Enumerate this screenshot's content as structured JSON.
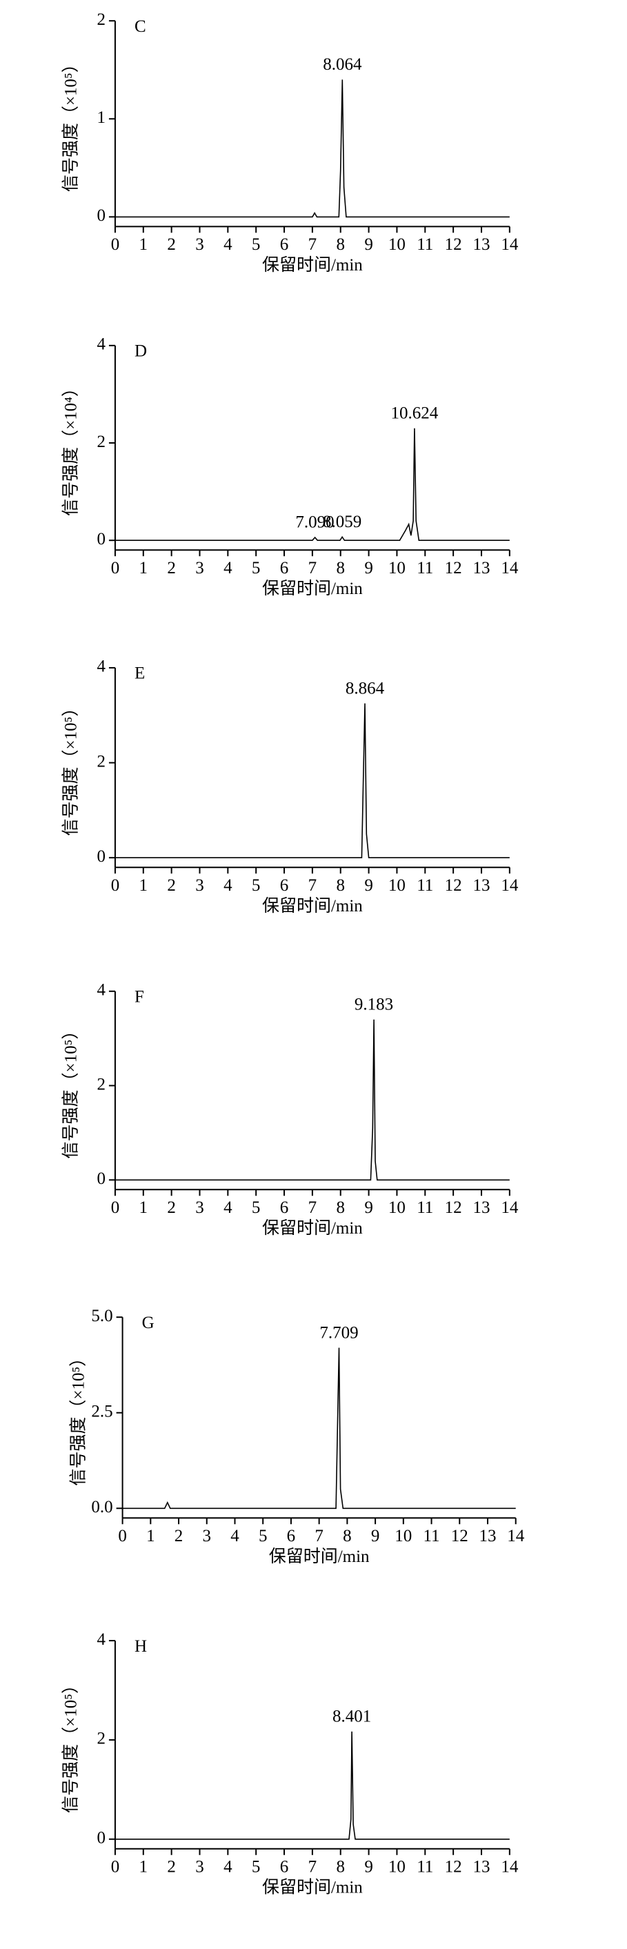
{
  "chart_data": [
    {
      "type": "line",
      "label": "C",
      "ylabel": "信号强度（×10⁵）",
      "xlabel": "保留时间/min",
      "xlim": [
        0,
        14
      ],
      "xticks": [
        0,
        1,
        2,
        3,
        4,
        5,
        6,
        7,
        8,
        9,
        10,
        11,
        12,
        13,
        14
      ],
      "ylim": [
        0,
        2
      ],
      "yticks": [
        0,
        1,
        2
      ],
      "x": [
        0,
        7.0,
        7.08,
        7.16,
        7.94,
        8.0,
        8.064,
        8.12,
        8.2,
        14
      ],
      "series": [
        {
          "color": "#000000",
          "values": [
            0,
            0,
            0.04,
            0,
            0,
            0.47,
            1.4,
            0.3,
            0,
            0
          ]
        }
      ],
      "annotations": [
        {
          "text": "8.064",
          "x": 8.064,
          "y": 1.4
        }
      ]
    },
    {
      "type": "line",
      "label": "D",
      "ylabel": "信号强度（×10⁴）",
      "xlabel": "保留时间/min",
      "xlim": [
        0,
        14
      ],
      "xticks": [
        0,
        1,
        2,
        3,
        4,
        5,
        6,
        7,
        8,
        9,
        10,
        11,
        12,
        13,
        14
      ],
      "ylim": [
        0,
        4
      ],
      "yticks": [
        0,
        2,
        4
      ],
      "x": [
        0,
        7.0,
        7.09,
        7.18,
        7.98,
        8.059,
        8.14,
        10.1,
        10.3,
        10.42,
        10.5,
        10.58,
        10.624,
        10.68,
        10.78,
        14
      ],
      "series": [
        {
          "color": "#000000",
          "values": [
            0,
            0,
            0.06,
            0,
            0,
            0.07,
            0,
            0,
            0.2,
            0.33,
            0.1,
            0.4,
            2.3,
            0.4,
            0,
            0
          ]
        }
      ],
      "annotations": [
        {
          "text": "7.090",
          "x": 7.09,
          "y": 0.06
        },
        {
          "text": "8.059",
          "x": 8.059,
          "y": 0.07
        },
        {
          "text": "10.624",
          "x": 10.624,
          "y": 2.3
        }
      ]
    },
    {
      "type": "line",
      "label": "E",
      "ylabel": "信号强度（×10⁵）",
      "xlabel": "保留时间/min",
      "xlim": [
        0,
        14
      ],
      "xticks": [
        0,
        1,
        2,
        3,
        4,
        5,
        6,
        7,
        8,
        9,
        10,
        11,
        12,
        13,
        14
      ],
      "ylim": [
        0,
        4
      ],
      "yticks": [
        0,
        2,
        4
      ],
      "x": [
        0,
        8.75,
        8.82,
        8.864,
        8.92,
        9.0,
        14
      ],
      "series": [
        {
          "color": "#000000",
          "values": [
            0,
            0,
            2.0,
            3.25,
            0.5,
            0,
            0
          ]
        }
      ],
      "annotations": [
        {
          "text": "8.864",
          "x": 8.864,
          "y": 3.25
        }
      ]
    },
    {
      "type": "line",
      "label": "F",
      "ylabel": "信号强度（×10⁵）",
      "xlabel": "保留时间/min",
      "xlim": [
        0,
        14
      ],
      "xticks": [
        0,
        1,
        2,
        3,
        4,
        5,
        6,
        7,
        8,
        9,
        10,
        11,
        12,
        13,
        14
      ],
      "ylim": [
        0,
        4
      ],
      "yticks": [
        0,
        2,
        4
      ],
      "x": [
        0,
        9.07,
        9.14,
        9.183,
        9.23,
        9.3,
        14
      ],
      "series": [
        {
          "color": "#000000",
          "values": [
            0,
            0,
            1.1,
            3.4,
            0.4,
            0,
            0
          ]
        }
      ],
      "annotations": [
        {
          "text": "9.183",
          "x": 9.183,
          "y": 3.4
        }
      ]
    },
    {
      "type": "line",
      "label": "G",
      "ylabel": "信号强度（×10⁵）",
      "xlabel": "保留时间/min",
      "xlim": [
        0,
        14
      ],
      "xticks": [
        0,
        1,
        2,
        3,
        4,
        5,
        6,
        7,
        8,
        9,
        10,
        11,
        12,
        13,
        14
      ],
      "ylim": [
        0,
        5
      ],
      "yticks": [
        {
          "value": 0,
          "label": "0.0"
        },
        2.5,
        {
          "value": 5,
          "label": "5.0"
        }
      ],
      "x": [
        0,
        1.5,
        1.6,
        1.7,
        7.6,
        7.67,
        7.709,
        7.76,
        7.85,
        14
      ],
      "series": [
        {
          "color": "#000000",
          "values": [
            0,
            0,
            0.15,
            0,
            0,
            2.7,
            4.2,
            0.5,
            0,
            0
          ]
        }
      ],
      "annotations": [
        {
          "text": "7.709",
          "x": 7.709,
          "y": 4.2
        }
      ]
    },
    {
      "type": "line",
      "label": "H",
      "ylabel": "信号强度（×10⁵）",
      "xlabel": "保留时间/min",
      "xlim": [
        0,
        14
      ],
      "xticks": [
        0,
        1,
        2,
        3,
        4,
        5,
        6,
        7,
        8,
        9,
        10,
        11,
        12,
        13,
        14
      ],
      "ylim": [
        0,
        4
      ],
      "yticks": [
        0,
        2,
        4
      ],
      "x": [
        0,
        8.3,
        8.37,
        8.401,
        8.45,
        8.52,
        14
      ],
      "series": [
        {
          "color": "#000000",
          "values": [
            0,
            0,
            0.4,
            2.17,
            0.3,
            0,
            0
          ]
        }
      ],
      "annotations": [
        {
          "text": "8.401",
          "x": 8.401,
          "y": 2.17
        }
      ]
    }
  ]
}
